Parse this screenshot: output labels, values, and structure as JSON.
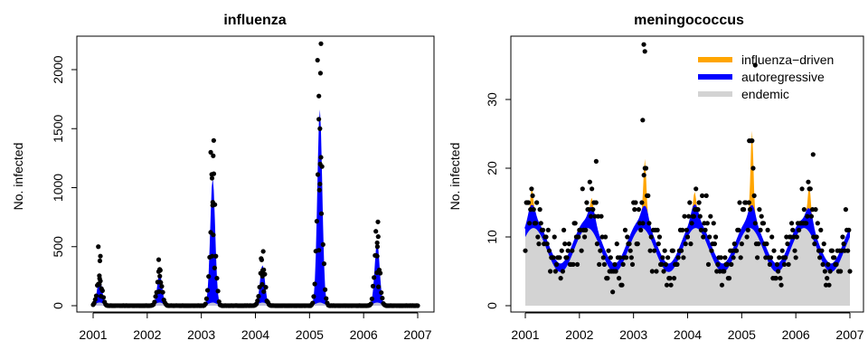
{
  "chart_data": [
    {
      "type": "area",
      "title": "influenza",
      "ylabel": "No. infected",
      "xlabel": "",
      "xlim": [
        2001,
        2007
      ],
      "ylim": [
        0,
        2250
      ],
      "x_ticks": [
        "2001",
        "2002",
        "2003",
        "2004",
        "2005",
        "2006",
        "2007"
      ],
      "y_ticks": [
        "0",
        "500",
        "1000",
        "1500",
        "2000"
      ],
      "season_peaks": [
        {
          "t": 2001.12,
          "fit": 230,
          "obs": [
            420,
            500,
            380,
            230,
            180,
            80
          ]
        },
        {
          "t": 2002.23,
          "fit": 270,
          "obs": [
            300,
            390,
            250,
            200,
            120
          ]
        },
        {
          "t": 2003.21,
          "fit": 1080,
          "obs": [
            1400,
            1300,
            1270,
            1080,
            850,
            600,
            420,
            320
          ]
        },
        {
          "t": 2004.13,
          "fit": 340,
          "obs": [
            460,
            400,
            300,
            250,
            180,
            120
          ]
        },
        {
          "t": 2005.19,
          "fit": 1660,
          "obs": [
            2220,
            2080,
            1970,
            1580,
            1500,
            1200,
            980,
            780,
            470
          ]
        },
        {
          "t": 2006.25,
          "fit": 540,
          "obs": [
            710,
            630,
            500,
            420,
            280,
            160
          ]
        }
      ],
      "series": [
        {
          "name": "autoregressive",
          "color": "#0000ff"
        },
        {
          "name": "endemic",
          "color": "#d3d3d3"
        }
      ],
      "point_color": "#000000"
    },
    {
      "type": "area",
      "title": "meningococcus",
      "ylabel": "No. infected",
      "xlabel": "",
      "xlim": [
        2001,
        2007
      ],
      "ylim": [
        0,
        38
      ],
      "x_ticks": [
        "2001",
        "2002",
        "2003",
        "2004",
        "2005",
        "2006",
        "2007"
      ],
      "y_ticks": [
        "0",
        "10",
        "20",
        "30"
      ],
      "endemic": {
        "mean": 9.2,
        "amplitude": 3.2,
        "peak_phase": 0.15
      },
      "influenza_spikes": [
        {
          "t": 2001.12,
          "height": 2.5
        },
        {
          "t": 2002.23,
          "height": 1.5
        },
        {
          "t": 2003.21,
          "height": 7.0
        },
        {
          "t": 2004.13,
          "height": 2.0
        },
        {
          "t": 2005.19,
          "height": 11.0
        },
        {
          "t": 2006.25,
          "height": 3.5
        }
      ],
      "outliers": [
        {
          "x": 2003.19,
          "y": 38
        },
        {
          "x": 2003.21,
          "y": 37
        },
        {
          "x": 2003.17,
          "y": 27
        },
        {
          "x": 2005.25,
          "y": 35
        },
        {
          "x": 2005.14,
          "y": 24
        },
        {
          "x": 2002.31,
          "y": 21
        },
        {
          "x": 2006.32,
          "y": 22
        }
      ],
      "legend": {
        "position": "top-right",
        "items": [
          {
            "label": "influenza−driven",
            "color": "#ffa500"
          },
          {
            "label": "autoregressive",
            "color": "#0000ff"
          },
          {
            "label": "endemic",
            "color": "#d3d3d3"
          }
        ]
      },
      "point_color": "#000000"
    }
  ]
}
